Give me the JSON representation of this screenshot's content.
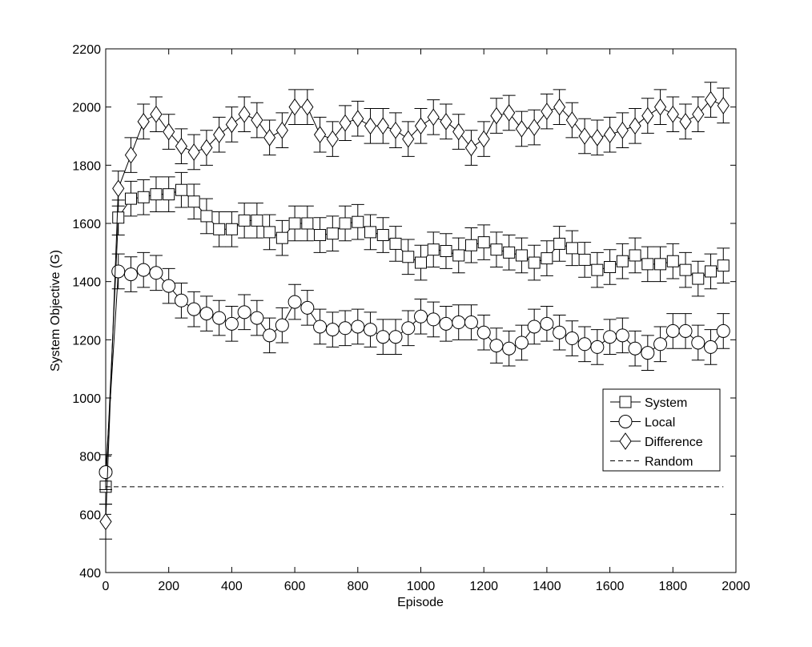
{
  "chart_data": {
    "type": "line",
    "xlabel": "Episode",
    "ylabel": "System Objective (G)",
    "xlim": [
      0,
      2000
    ],
    "ylim": [
      400,
      2200
    ],
    "xticks": [
      0,
      200,
      400,
      600,
      800,
      1000,
      1200,
      1400,
      1600,
      1800,
      2000
    ],
    "yticks": [
      400,
      600,
      800,
      1000,
      1200,
      1400,
      1600,
      1800,
      2000,
      2200
    ],
    "grid": false,
    "legend_position": "right",
    "x": [
      0,
      40,
      80,
      120,
      160,
      200,
      240,
      280,
      320,
      360,
      400,
      440,
      480,
      520,
      560,
      600,
      640,
      680,
      720,
      760,
      800,
      840,
      880,
      920,
      960,
      1000,
      1040,
      1080,
      1120,
      1160,
      1200,
      1240,
      1280,
      1320,
      1360,
      1400,
      1440,
      1480,
      1520,
      1560,
      1600,
      1640,
      1680,
      1720,
      1760,
      1800,
      1840,
      1880,
      1920,
      1960
    ],
    "error_bar_half_width": 60,
    "series": [
      {
        "name": "System",
        "marker": "square",
        "values": [
          695,
          1620,
          1685,
          1690,
          1700,
          1700,
          1715,
          1675,
          1625,
          1580,
          1580,
          1610,
          1610,
          1570,
          1550,
          1600,
          1600,
          1560,
          1565,
          1600,
          1605,
          1570,
          1560,
          1530,
          1485,
          1465,
          1510,
          1505,
          1490,
          1525,
          1535,
          1510,
          1500,
          1490,
          1465,
          1480,
          1530,
          1515,
          1475,
          1440,
          1450,
          1470,
          1490,
          1460,
          1460,
          1470,
          1440,
          1410,
          1435,
          1455
        ]
      },
      {
        "name": "Local",
        "marker": "circle",
        "values": [
          745,
          1435,
          1425,
          1440,
          1430,
          1385,
          1335,
          1305,
          1290,
          1275,
          1255,
          1295,
          1275,
          1215,
          1250,
          1330,
          1310,
          1245,
          1235,
          1240,
          1245,
          1235,
          1210,
          1210,
          1240,
          1280,
          1270,
          1255,
          1260,
          1260,
          1225,
          1180,
          1170,
          1190,
          1245,
          1255,
          1225,
          1205,
          1185,
          1175,
          1210,
          1215,
          1170,
          1155,
          1185,
          1230,
          1230,
          1190,
          1175,
          1230
        ]
      },
      {
        "name": "Difference",
        "marker": "diamond",
        "values": [
          575,
          1720,
          1835,
          1950,
          1975,
          1915,
          1865,
          1845,
          1860,
          1905,
          1940,
          1975,
          1955,
          1895,
          1920,
          2000,
          2000,
          1905,
          1890,
          1945,
          1960,
          1935,
          1935,
          1920,
          1890,
          1935,
          1965,
          1950,
          1915,
          1860,
          1890,
          1970,
          1980,
          1925,
          1930,
          1985,
          2000,
          1955,
          1900,
          1895,
          1905,
          1920,
          1935,
          1970,
          2000,
          1975,
          1950,
          1975,
          2025,
          2005
        ]
      },
      {
        "name": "Random",
        "marker": "none",
        "dashed": true,
        "x": [
          0,
          1960
        ],
        "values": [
          695,
          695
        ]
      }
    ]
  }
}
